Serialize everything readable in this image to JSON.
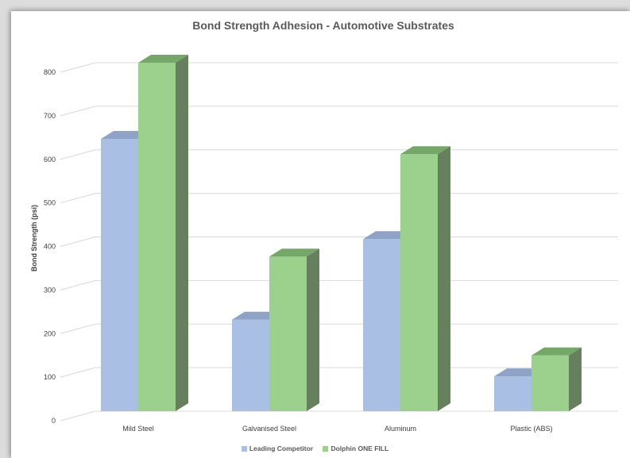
{
  "chart_data": {
    "type": "bar",
    "title": "Bond Strength Adhesion - Automotive Substrates",
    "xlabel": "",
    "ylabel": "Bond Strength (psi)",
    "ylim": [
      0,
      800
    ],
    "yticks": [
      "0",
      "100",
      "200",
      "300",
      "400",
      "500",
      "600",
      "700",
      "800"
    ],
    "categories": [
      "Mild Steel",
      "Galvanised Steel",
      "Aluminum",
      "Plastic (ABS)"
    ],
    "series": [
      {
        "name": "Leading Competitor",
        "values": [
          625,
          210,
          395,
          80
        ],
        "color": "#a9bfe3"
      },
      {
        "name": "Dolphin ONE FILL",
        "values": [
          800,
          355,
          590,
          128
        ],
        "color": "#9bd18c"
      }
    ],
    "grid": true,
    "legend_position": "bottom",
    "style": "3d-clustered-column"
  }
}
